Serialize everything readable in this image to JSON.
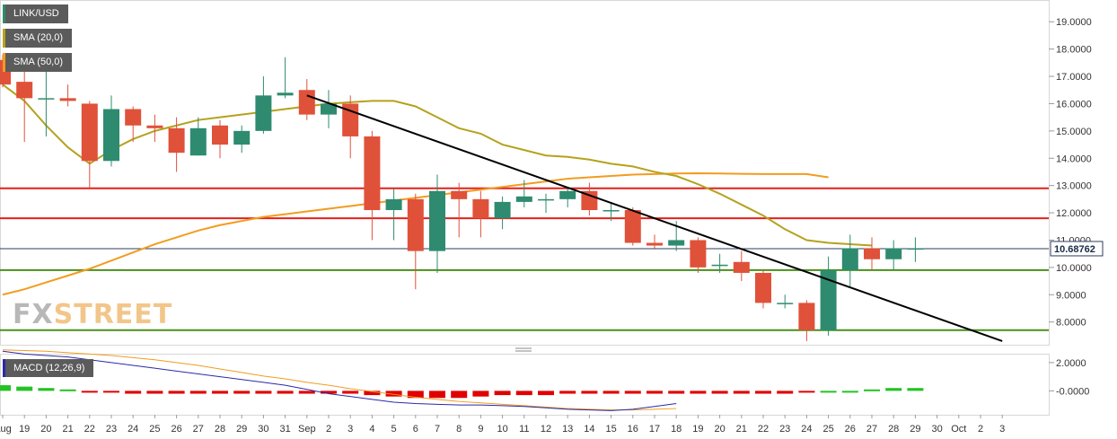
{
  "chart_data": [
    {
      "type": "candlestick",
      "title": "LINK/USD",
      "indicators": [
        {
          "name": "SMA (20,0)",
          "color": "#b5a21c"
        },
        {
          "name": "SMA (50,0)",
          "color": "#f29c1f"
        }
      ],
      "y_ticks": [
        "19.0000",
        "18.0000",
        "17.0000",
        "16.0000",
        "15.0000",
        "14.0000",
        "13.0000",
        "12.0000",
        "11.0000",
        "10.0000",
        "9.0000",
        "8.0000"
      ],
      "ylim": [
        7.2,
        19.6
      ],
      "current_price": "10.68762",
      "x_labels": [
        "Aug",
        "19",
        "20",
        "21",
        "22",
        "23",
        "24",
        "25",
        "26",
        "27",
        "28",
        "29",
        "30",
        "31",
        "Sep",
        "2",
        "3",
        "4",
        "5",
        "6",
        "7",
        "8",
        "9",
        "10",
        "11",
        "12",
        "13",
        "14",
        "15",
        "16",
        "17",
        "18",
        "19",
        "20",
        "21",
        "22",
        "23",
        "24",
        "25",
        "26",
        "27",
        "28",
        "29",
        "30",
        "Oct",
        "2",
        "3"
      ],
      "candles": [
        {
          "d": "Aug",
          "o": 17.6,
          "h": 17.8,
          "l": 16.6,
          "c": 16.7
        },
        {
          "d": "19",
          "o": 16.8,
          "h": 17.3,
          "l": 14.6,
          "c": 16.2
        },
        {
          "d": "20",
          "o": 16.2,
          "h": 17.4,
          "l": 14.8,
          "c": 16.2
        },
        {
          "d": "21",
          "o": 16.2,
          "h": 16.7,
          "l": 15.9,
          "c": 16.1
        },
        {
          "d": "22",
          "o": 16.0,
          "h": 16.1,
          "l": 12.9,
          "c": 13.9
        },
        {
          "d": "23",
          "o": 13.9,
          "h": 16.3,
          "l": 13.7,
          "c": 15.8
        },
        {
          "d": "24",
          "o": 15.8,
          "h": 15.9,
          "l": 14.6,
          "c": 15.2
        },
        {
          "d": "25",
          "o": 15.2,
          "h": 15.6,
          "l": 14.6,
          "c": 15.1
        },
        {
          "d": "26",
          "o": 15.1,
          "h": 15.5,
          "l": 13.5,
          "c": 14.2
        },
        {
          "d": "27",
          "o": 14.1,
          "h": 15.5,
          "l": 14.1,
          "c": 15.1
        },
        {
          "d": "28",
          "o": 15.2,
          "h": 15.4,
          "l": 14.0,
          "c": 14.5
        },
        {
          "d": "29",
          "o": 14.5,
          "h": 15.2,
          "l": 14.2,
          "c": 15.0
        },
        {
          "d": "30",
          "o": 15.0,
          "h": 17.0,
          "l": 14.9,
          "c": 16.3
        },
        {
          "d": "31",
          "o": 16.3,
          "h": 17.7,
          "l": 16.2,
          "c": 16.4
        },
        {
          "d": "Sep",
          "o": 16.5,
          "h": 16.9,
          "l": 15.4,
          "c": 15.6
        },
        {
          "d": "2",
          "o": 15.6,
          "h": 16.5,
          "l": 15.1,
          "c": 16.0
        },
        {
          "d": "3",
          "o": 16.0,
          "h": 16.3,
          "l": 14.0,
          "c": 14.8
        },
        {
          "d": "4",
          "o": 14.8,
          "h": 15.0,
          "l": 11.0,
          "c": 12.1
        },
        {
          "d": "5",
          "o": 12.1,
          "h": 12.9,
          "l": 11.0,
          "c": 12.5
        },
        {
          "d": "6",
          "o": 12.5,
          "h": 12.7,
          "l": 9.2,
          "c": 10.6
        },
        {
          "d": "7",
          "o": 10.6,
          "h": 13.4,
          "l": 9.8,
          "c": 12.8
        },
        {
          "d": "8",
          "o": 12.8,
          "h": 13.1,
          "l": 11.1,
          "c": 12.5
        },
        {
          "d": "9",
          "o": 12.5,
          "h": 12.8,
          "l": 11.1,
          "c": 11.8
        },
        {
          "d": "10",
          "o": 11.8,
          "h": 12.6,
          "l": 11.4,
          "c": 12.4
        },
        {
          "d": "11",
          "o": 12.4,
          "h": 13.2,
          "l": 12.2,
          "c": 12.6
        },
        {
          "d": "12",
          "o": 12.5,
          "h": 12.7,
          "l": 12.0,
          "c": 12.5
        },
        {
          "d": "13",
          "o": 12.5,
          "h": 12.9,
          "l": 12.2,
          "c": 12.8
        },
        {
          "d": "14",
          "o": 12.8,
          "h": 13.1,
          "l": 11.9,
          "c": 12.1
        },
        {
          "d": "15",
          "o": 12.1,
          "h": 12.4,
          "l": 11.7,
          "c": 12.1
        },
        {
          "d": "16",
          "o": 12.1,
          "h": 12.2,
          "l": 10.8,
          "c": 10.9
        },
        {
          "d": "17",
          "o": 10.9,
          "h": 11.2,
          "l": 10.7,
          "c": 10.8
        },
        {
          "d": "18",
          "o": 10.8,
          "h": 11.7,
          "l": 10.6,
          "c": 11.0
        },
        {
          "d": "19",
          "o": 11.0,
          "h": 11.1,
          "l": 9.8,
          "c": 10.0
        },
        {
          "d": "20",
          "o": 10.1,
          "h": 10.5,
          "l": 9.8,
          "c": 10.1
        },
        {
          "d": "21",
          "o": 10.2,
          "h": 10.6,
          "l": 9.5,
          "c": 9.8
        },
        {
          "d": "22",
          "o": 9.8,
          "h": 9.9,
          "l": 8.5,
          "c": 8.7
        },
        {
          "d": "23",
          "o": 8.7,
          "h": 9.0,
          "l": 8.5,
          "c": 8.7
        },
        {
          "d": "24",
          "o": 8.7,
          "h": 8.8,
          "l": 7.3,
          "c": 7.7
        },
        {
          "d": "25",
          "o": 7.7,
          "h": 10.4,
          "l": 7.5,
          "c": 9.9
        },
        {
          "d": "26",
          "o": 9.9,
          "h": 11.2,
          "l": 9.3,
          "c": 10.7
        },
        {
          "d": "27",
          "o": 10.7,
          "h": 11.1,
          "l": 9.9,
          "c": 10.3
        },
        {
          "d": "28",
          "o": 10.3,
          "h": 11.0,
          "l": 9.9,
          "c": 10.7
        },
        {
          "d": "29",
          "o": 10.7,
          "h": 11.1,
          "l": 10.2,
          "c": 10.7
        }
      ],
      "sma20": [
        16.7,
        16.1,
        15.2,
        14.4,
        13.8,
        14.3,
        14.7,
        15.0,
        15.2,
        15.4,
        15.5,
        15.6,
        15.7,
        15.8,
        15.9,
        16.0,
        16.05,
        16.1,
        16.1,
        15.9,
        15.5,
        15.1,
        14.9,
        14.5,
        14.3,
        14.1,
        14.05,
        13.95,
        13.8,
        13.7,
        13.5,
        13.35,
        13.05,
        12.7,
        12.3,
        11.9,
        11.4,
        11.0,
        10.9,
        10.85,
        10.8
      ],
      "sma20_start_index": 0,
      "sma50": [
        9.0,
        9.2,
        9.45,
        9.7,
        9.95,
        10.25,
        10.55,
        10.85,
        11.1,
        11.35,
        11.55,
        11.7,
        11.85,
        11.95,
        12.05,
        12.15,
        12.25,
        12.35,
        12.45,
        12.55,
        12.65,
        12.75,
        12.85,
        12.95,
        13.05,
        13.15,
        13.25,
        13.3,
        13.35,
        13.4,
        13.42,
        13.44,
        13.45,
        13.44,
        13.43,
        13.42,
        13.42,
        13.42,
        13.3
      ],
      "sma50_start_index": 0,
      "hlines": [
        {
          "value": 12.9,
          "color": "#e3201b"
        },
        {
          "value": 11.8,
          "color": "#e3201b"
        },
        {
          "value": 9.9,
          "color": "#4a8f1c"
        },
        {
          "value": 7.7,
          "color": "#4a8f1c"
        }
      ],
      "trendline": {
        "from_date": "Sep",
        "from_value": 16.3,
        "to_date": "3",
        "to_value": 7.3,
        "color": "#000000"
      }
    },
    {
      "type": "macd",
      "title": "MACD (12,26,9)",
      "y_ticks": [
        "2.0000",
        "-0.0000"
      ],
      "ylim": [
        -1.5,
        2.5
      ],
      "histogram": [
        0.4,
        0.3,
        0.2,
        0.1,
        -0.1,
        -0.1,
        -0.2,
        -0.2,
        -0.2,
        -0.2,
        -0.2,
        -0.2,
        -0.2,
        -0.2,
        -0.2,
        -0.2,
        -0.2,
        -0.3,
        -0.4,
        -0.5,
        -0.5,
        -0.5,
        -0.4,
        -0.3,
        -0.3,
        -0.3,
        -0.2,
        -0.2,
        -0.2,
        -0.2,
        -0.2,
        -0.2,
        -0.2,
        -0.2,
        -0.2,
        -0.2,
        -0.2,
        -0.1,
        0.0,
        0.0,
        0.1,
        0.2,
        0.2
      ],
      "macd": [
        2.8,
        2.6,
        2.5,
        2.4,
        2.2,
        2.0,
        1.8,
        1.6,
        1.4,
        1.2,
        1.0,
        0.8,
        0.6,
        0.4,
        0.1,
        -0.2,
        -0.4,
        -0.6,
        -0.8,
        -0.9,
        -0.95,
        -1.0,
        -1.0,
        -1.05,
        -1.1,
        -1.2,
        -1.3,
        -1.35,
        -1.4,
        -1.3,
        -1.1,
        -0.9
      ],
      "signal": [
        2.9,
        2.85,
        2.8,
        2.7,
        2.6,
        2.5,
        2.35,
        2.2,
        2.0,
        1.8,
        1.55,
        1.3,
        1.05,
        0.85,
        0.6,
        0.4,
        0.15,
        -0.05,
        -0.25,
        -0.45,
        -0.6,
        -0.75,
        -0.85,
        -0.95,
        -1.05,
        -1.15,
        -1.25,
        -1.3,
        -1.35,
        -1.35,
        -1.3,
        -1.25
      ],
      "macd_color": "#2a2aa8",
      "signal_color": "#f29c1f"
    }
  ],
  "watermark": {
    "fx": "FX",
    "street": "STREET"
  }
}
